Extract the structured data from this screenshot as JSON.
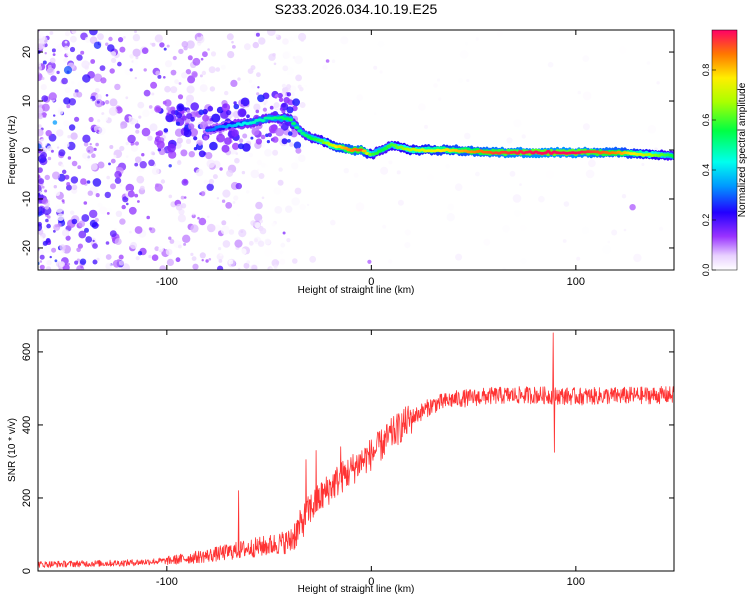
{
  "title": "S233.2026.034.10.19.E25",
  "colors": {
    "snr_line": "#ff3333",
    "frame": "#000000",
    "background": "#ffffff"
  },
  "chart_data": [
    {
      "type": "heatmap",
      "xlabel": "Height of straight line (km)",
      "ylabel": "Frequency (Hz)",
      "xlim": [
        -163,
        148
      ],
      "ylim": [
        -24.5,
        24.5
      ],
      "x_ticks": [
        -100,
        0,
        100
      ],
      "x_tick_labels": [
        "-100",
        "0",
        "100"
      ],
      "y_ticks": [
        -20,
        -10,
        0,
        10,
        20
      ],
      "y_tick_labels": [
        "-20",
        "-10",
        "0",
        "10",
        "20"
      ],
      "colorbar": {
        "label": "Normalized spectral amplitude",
        "range": [
          0,
          0.96
        ],
        "ticks": [
          0,
          0.2,
          0.4,
          0.6,
          0.8
        ],
        "tick_labels": [
          "0.0",
          "0.2",
          "0.4",
          "0.6",
          "0.8"
        ]
      },
      "ridge": {
        "x": [
          -80,
          -70,
          -60,
          -50,
          -40,
          -35,
          -30,
          -25,
          -20,
          -15,
          -10,
          -5,
          0,
          5,
          10,
          20,
          40,
          60,
          80,
          100,
          120,
          148
        ],
        "freq": [
          4,
          5,
          5.5,
          6.5,
          6.5,
          4,
          2.5,
          2,
          1,
          0.5,
          0,
          0,
          -1,
          0,
          1,
          0,
          0,
          -0.5,
          -0.5,
          -0.5,
          -0.5,
          -1.2
        ],
        "amplitude": [
          0.3,
          0.35,
          0.45,
          0.5,
          0.55,
          0.5,
          0.55,
          0.6,
          0.7,
          0.8,
          0.85,
          0.9,
          0.6,
          0.55,
          0.6,
          0.7,
          0.8,
          0.9,
          0.95,
          0.95,
          0.85,
          0.55
        ]
      }
    },
    {
      "type": "line",
      "xlabel": "Height of straight line (km)",
      "ylabel": "SNR (10 * v/v)",
      "xlim": [
        -163,
        148
      ],
      "ylim": [
        0,
        660
      ],
      "x_ticks": [
        -100,
        0,
        100
      ],
      "x_tick_labels": [
        "-100",
        "0",
        "100"
      ],
      "y_ticks": [
        0,
        200,
        400,
        600
      ],
      "y_tick_labels": [
        "0",
        "200",
        "400",
        "600"
      ],
      "trend": {
        "x": [
          -163,
          -120,
          -100,
          -80,
          -60,
          -50,
          -40,
          -35,
          -30,
          -25,
          -20,
          -15,
          -10,
          -5,
          0,
          5,
          10,
          20,
          30,
          40,
          60,
          80,
          100,
          120,
          148
        ],
        "y": [
          18,
          22,
          28,
          42,
          62,
          70,
          82,
          120,
          170,
          200,
          230,
          255,
          275,
          300,
          320,
          345,
          375,
          420,
          455,
          470,
          480,
          482,
          478,
          480,
          482
        ]
      },
      "spikes": [
        {
          "x": -65,
          "y": 220
        },
        {
          "x": -32,
          "y": 305
        },
        {
          "x": -27,
          "y": 330
        },
        {
          "x": -15,
          "y": 340
        },
        {
          "x": 4,
          "y": 375
        },
        {
          "x": 89,
          "y": 652
        },
        {
          "x": 89.5,
          "y": 325
        }
      ]
    }
  ]
}
